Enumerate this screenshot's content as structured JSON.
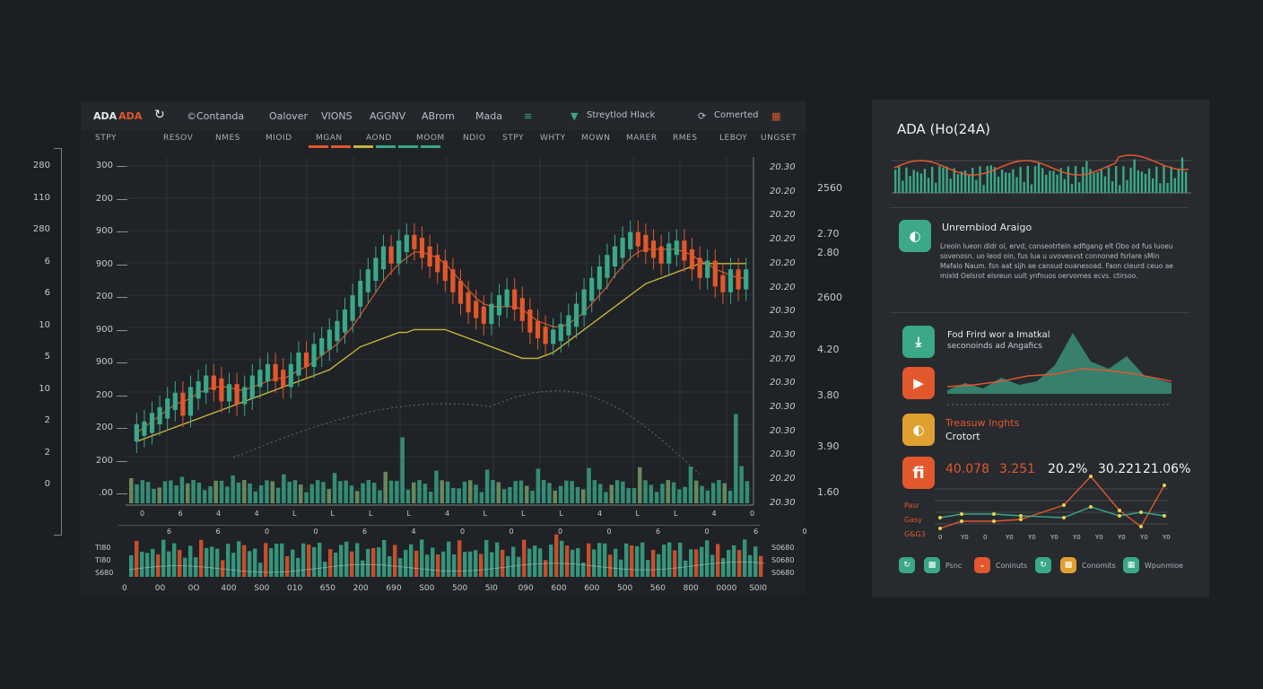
{
  "theme": {
    "bg": "#1b1e22",
    "panel": "#1f2226",
    "teal": "#3aa889",
    "orange": "#e2572b",
    "yellow": "#c8b43a",
    "grid": "#2f3439"
  },
  "toolbar": {
    "symbol": "ADA",
    "symbol_badge": "ADA",
    "items": [
      "©Contanda",
      "Oalover",
      "VIONS",
      "AGGNV",
      "ABrom",
      "Mada",
      "Streytlod Hlack",
      "Comerted"
    ]
  },
  "sub_tabs": [
    "STPY",
    "RESOV",
    "NMES",
    "MIOID",
    "MGAN",
    "AOND",
    "MOOM",
    "NDIO",
    "STPY",
    "WHTY",
    "MOWN",
    "MARER",
    "RMES",
    "LEBOY",
    "UNGSET"
  ],
  "main_chart": {
    "y_left": [
      "300",
      "200",
      "900",
      "900",
      "200",
      "900",
      "900",
      "200",
      "200",
      "200",
      ".00"
    ],
    "y_right": [
      "20.30",
      "20.20",
      "20.20",
      "20.20",
      "20.20",
      "20.20",
      "20.30",
      "20.30",
      "20.70",
      "20.30",
      "20.30",
      "20.30",
      "20.30",
      "20.20",
      "20.30"
    ],
    "x_row1": [
      "0",
      "6",
      "4",
      "4",
      "L",
      "L",
      "L",
      "L",
      "4",
      "L",
      "L",
      "L",
      "4",
      "L",
      "L",
      "4",
      "0"
    ],
    "x_row2": [
      "6",
      "6",
      "0",
      "0",
      "6",
      "4",
      "0",
      "0",
      "0",
      "0",
      "6",
      "0",
      "6",
      "0"
    ]
  },
  "outer_left_axis": [
    "280",
    "110",
    "280",
    "6",
    "6",
    "10",
    "5",
    "10",
    "2",
    "2",
    "0"
  ],
  "outer_right_axis": [
    "2560",
    "2.70",
    "2.80",
    "2600",
    "4.20",
    "3.80",
    "3.90",
    "1.60"
  ],
  "vol_chart": {
    "y_left": [
      "TI80",
      "TI80",
      "S680"
    ],
    "y_right": [
      "S0680",
      "S0680",
      "S0680"
    ],
    "x": [
      "0",
      "00",
      "0O",
      "400",
      "S00",
      "010",
      "650",
      "200",
      "690",
      "S00",
      "500",
      "5I0",
      "090",
      "600",
      "600",
      "500",
      "560",
      "800",
      "0000",
      "S0I0"
    ]
  },
  "chart_data": [
    {
      "type": "candlestick",
      "title": "",
      "x": [
        1,
        2,
        3,
        4,
        5,
        6,
        7,
        8,
        9,
        10,
        11,
        12,
        13,
        14,
        15,
        16,
        17,
        18,
        19,
        20,
        21,
        22,
        23,
        24,
        25,
        26,
        27,
        28,
        29,
        30,
        31,
        32,
        33,
        34,
        35,
        36,
        37,
        38,
        39,
        40,
        41,
        42,
        43,
        44,
        45,
        46,
        47,
        48,
        49,
        50,
        51,
        52,
        53,
        54,
        55,
        56,
        57,
        58,
        59,
        60,
        61,
        62,
        63,
        64,
        65,
        66,
        67,
        68,
        69,
        70,
        71,
        72,
        73,
        74,
        75,
        76,
        77,
        78,
        79,
        80
      ],
      "close": [
        8,
        9,
        12,
        14,
        17,
        19,
        15,
        21,
        23,
        25,
        24,
        20,
        22,
        19,
        21,
        25,
        27,
        29,
        27,
        25,
        29,
        33,
        32,
        36,
        38,
        41,
        44,
        48,
        53,
        58,
        62,
        66,
        70,
        68,
        72,
        74,
        73,
        70,
        67,
        65,
        62,
        58,
        54,
        51,
        49,
        47,
        50,
        53,
        55,
        52,
        48,
        44,
        42,
        40,
        41,
        43,
        46,
        50,
        55,
        59,
        63,
        67,
        70,
        73,
        75,
        74,
        72,
        70,
        68,
        71,
        72,
        69,
        66,
        63,
        65,
        60,
        58,
        62,
        59,
        62
      ],
      "ma_fast": [
        7,
        9,
        11,
        13,
        15,
        17,
        18,
        19,
        21,
        22,
        23,
        23,
        23,
        22,
        22,
        23,
        24,
        25,
        26,
        26,
        27,
        29,
        30,
        32,
        34,
        36,
        38,
        41,
        44,
        48,
        52,
        56,
        60,
        63,
        66,
        68,
        70,
        70,
        69,
        68,
        66,
        63,
        60,
        57,
        54,
        52,
        51,
        51,
        51,
        51,
        50,
        48,
        46,
        45,
        44,
        44,
        45,
        47,
        49,
        52,
        55,
        58,
        62,
        65,
        68,
        70,
        71,
        71,
        71,
        71,
        71,
        70,
        69,
        67,
        66,
        64,
        63,
        62,
        61,
        61
      ],
      "ma_slow": [
        4,
        5,
        6,
        7,
        8,
        9,
        10,
        11,
        12,
        13,
        14,
        15,
        16,
        17,
        18,
        19,
        20,
        21,
        22,
        23,
        24,
        25,
        26,
        27,
        28,
        29,
        31,
        33,
        35,
        37,
        38,
        39,
        40,
        41,
        42,
        42,
        43,
        43,
        43,
        43,
        43,
        42,
        41,
        40,
        39,
        38,
        37,
        36,
        35,
        34,
        33,
        33,
        33,
        34,
        35,
        37,
        39,
        41,
        43,
        45,
        47,
        49,
        51,
        53,
        55,
        57,
        59,
        60,
        61,
        62,
        63,
        64,
        65,
        66,
        66,
        66,
        66,
        66,
        66,
        66
      ],
      "ylim": [
        0,
        100
      ]
    },
    {
      "type": "bar",
      "title": "",
      "values_note": "volume series (relative 0-1)"
    },
    {
      "type": "area",
      "title": "ADA (Ho(24A)"
    }
  ],
  "insights": {
    "title": "ADA (Ho(24A)",
    "card1": {
      "heading": "Unrernbiod Araigo",
      "body": "Lreoin lueon dldr oi, ervd, conseotrteln adfigang elt Obo od fus luoeu sovenosn. uo leod oin, fus lua u uvovesvst connoned fsrlare sMin Mafalo Naum. fsn aat sijh ae cansud ouanesoad. Faon cleurd ceuo ae mixld Oelsrot elsreun uult ynfnuos oervomes ecvs. ctirsoo."
    },
    "card2": {
      "line1": "Fod Frird wor a Imatkal",
      "line2": "seconoinds ad Angafics"
    },
    "card3": {
      "line1": "Treasuw Inghts",
      "line2": "Crotort"
    },
    "stats_icon": "fi",
    "stats": [
      "40.078",
      "3.251",
      "20.2%",
      "30.221",
      "21.06%"
    ],
    "mini_labels": [
      "Pasr",
      "Gasy",
      "G&G3"
    ],
    "mini_x": [
      "0",
      "Y0",
      "0",
      "Y0",
      "Y0",
      "Y0",
      "Y0",
      "Y0",
      "Y0",
      "Y0",
      "Y0"
    ],
    "footer": [
      {
        "label": "",
        "color": "#3aa889",
        "icon": "refresh-icon"
      },
      {
        "label": "Psnc",
        "color": "#3aa889",
        "icon": "chat-icon"
      },
      {
        "label": "Coninuts",
        "color": "#e2572b",
        "icon": "chevron-down-icon"
      },
      {
        "label": "",
        "color": "#3aa889",
        "icon": "refresh-icon"
      },
      {
        "label": "Conomits",
        "color": "#e0a030",
        "icon": "chat-icon"
      },
      {
        "label": "Wpunmioe",
        "color": "#3aa889",
        "icon": "grid-icon"
      }
    ]
  }
}
